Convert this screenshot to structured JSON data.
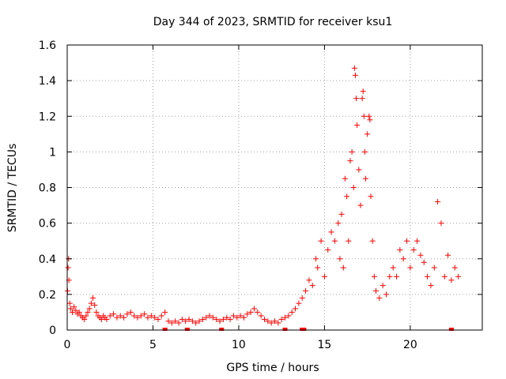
{
  "chart_data": {
    "type": "scatter",
    "title": "Day 344 of 2023, SRMTID for receiver ksu1",
    "xlabel": "GPS time / hours",
    "ylabel": "SRMTID / TECUs",
    "xlim": [
      0,
      24.2
    ],
    "ylim": [
      0,
      1.6
    ],
    "x_ticks": [
      0,
      5,
      10,
      15,
      20
    ],
    "x_tick_labels": [
      "0",
      "5",
      "10",
      "15",
      "20"
    ],
    "y_ticks": [
      0,
      0.2,
      0.4,
      0.6,
      0.8,
      1.0,
      1.2,
      1.4,
      1.6
    ],
    "y_tick_labels": [
      "0",
      "0.2",
      "0.4",
      "0.6",
      "0.8",
      "1",
      "1.2",
      "1.4",
      "1.6"
    ],
    "grid": true,
    "marker": "+",
    "series": [
      {
        "name": "SRMTID",
        "color": "#ff0000",
        "points": [
          [
            0.02,
            0.22
          ],
          [
            0.05,
            0.35
          ],
          [
            0.08,
            0.4
          ],
          [
            0.1,
            0.28
          ],
          [
            0.15,
            0.15
          ],
          [
            0.2,
            0.12
          ],
          [
            0.3,
            0.1
          ],
          [
            0.4,
            0.13
          ],
          [
            0.5,
            0.11
          ],
          [
            0.6,
            0.09
          ],
          [
            0.7,
            0.1
          ],
          [
            0.8,
            0.08
          ],
          [
            0.9,
            0.07
          ],
          [
            1.0,
            0.06
          ],
          [
            1.1,
            0.08
          ],
          [
            1.2,
            0.1
          ],
          [
            1.3,
            0.12
          ],
          [
            1.4,
            0.15
          ],
          [
            1.5,
            0.18
          ],
          [
            1.6,
            0.14
          ],
          [
            1.7,
            0.1
          ],
          [
            1.8,
            0.08
          ],
          [
            1.9,
            0.07
          ],
          [
            2.0,
            0.06
          ],
          [
            2.1,
            0.08
          ],
          [
            2.2,
            0.07
          ],
          [
            2.3,
            0.06
          ],
          [
            2.5,
            0.08
          ],
          [
            2.7,
            0.09
          ],
          [
            2.9,
            0.07
          ],
          [
            3.1,
            0.08
          ],
          [
            3.3,
            0.07
          ],
          [
            3.5,
            0.09
          ],
          [
            3.7,
            0.1
          ],
          [
            3.9,
            0.08
          ],
          [
            4.1,
            0.07
          ],
          [
            4.3,
            0.08
          ],
          [
            4.5,
            0.09
          ],
          [
            4.7,
            0.07
          ],
          [
            4.9,
            0.08
          ],
          [
            5.1,
            0.07
          ],
          [
            5.3,
            0.06
          ],
          [
            5.5,
            0.08
          ],
          [
            5.7,
            0.1
          ],
          [
            5.9,
            0.05
          ],
          [
            6.1,
            0.04
          ],
          [
            6.3,
            0.05
          ],
          [
            6.5,
            0.04
          ],
          [
            6.7,
            0.06
          ],
          [
            6.9,
            0.05
          ],
          [
            7.1,
            0.06
          ],
          [
            7.3,
            0.05
          ],
          [
            7.5,
            0.04
          ],
          [
            7.7,
            0.05
          ],
          [
            7.9,
            0.06
          ],
          [
            8.1,
            0.07
          ],
          [
            8.3,
            0.08
          ],
          [
            8.5,
            0.07
          ],
          [
            8.7,
            0.06
          ],
          [
            8.9,
            0.05
          ],
          [
            9.1,
            0.06
          ],
          [
            9.3,
            0.07
          ],
          [
            9.5,
            0.06
          ],
          [
            9.7,
            0.08
          ],
          [
            9.9,
            0.07
          ],
          [
            10.1,
            0.08
          ],
          [
            10.3,
            0.07
          ],
          [
            10.5,
            0.09
          ],
          [
            10.7,
            0.1
          ],
          [
            10.9,
            0.12
          ],
          [
            11.1,
            0.1
          ],
          [
            11.3,
            0.08
          ],
          [
            11.5,
            0.06
          ],
          [
            11.7,
            0.05
          ],
          [
            11.9,
            0.04
          ],
          [
            12.1,
            0.05
          ],
          [
            12.3,
            0.04
          ],
          [
            12.5,
            0.06
          ],
          [
            12.7,
            0.07
          ],
          [
            12.9,
            0.08
          ],
          [
            13.1,
            0.1
          ],
          [
            13.3,
            0.12
          ],
          [
            13.5,
            0.15
          ],
          [
            13.7,
            0.18
          ],
          [
            13.9,
            0.22
          ],
          [
            14.1,
            0.28
          ],
          [
            14.3,
            0.25
          ],
          [
            14.5,
            0.4
          ],
          [
            14.6,
            0.35
          ],
          [
            14.8,
            0.5
          ],
          [
            15.0,
            0.3
          ],
          [
            15.2,
            0.45
          ],
          [
            15.4,
            0.55
          ],
          [
            15.6,
            0.5
          ],
          [
            15.8,
            0.6
          ],
          [
            15.9,
            0.4
          ],
          [
            16.0,
            0.65
          ],
          [
            16.1,
            0.35
          ],
          [
            16.2,
            0.85
          ],
          [
            16.3,
            0.75
          ],
          [
            16.4,
            0.5
          ],
          [
            16.5,
            0.95
          ],
          [
            16.6,
            1.0
          ],
          [
            16.7,
            0.8
          ],
          [
            16.75,
            1.47
          ],
          [
            16.8,
            1.43
          ],
          [
            16.85,
            1.3
          ],
          [
            16.9,
            1.15
          ],
          [
            17.0,
            0.9
          ],
          [
            17.1,
            0.7
          ],
          [
            17.2,
            1.3
          ],
          [
            17.25,
            1.34
          ],
          [
            17.3,
            1.2
          ],
          [
            17.35,
            1.0
          ],
          [
            17.4,
            0.85
          ],
          [
            17.5,
            1.1
          ],
          [
            17.6,
            1.2
          ],
          [
            17.65,
            1.18
          ],
          [
            17.7,
            0.75
          ],
          [
            17.8,
            0.5
          ],
          [
            17.9,
            0.3
          ],
          [
            18.0,
            0.22
          ],
          [
            18.2,
            0.18
          ],
          [
            18.4,
            0.25
          ],
          [
            18.6,
            0.2
          ],
          [
            18.8,
            0.3
          ],
          [
            19.0,
            0.35
          ],
          [
            19.2,
            0.3
          ],
          [
            19.4,
            0.45
          ],
          [
            19.6,
            0.4
          ],
          [
            19.8,
            0.5
          ],
          [
            20.0,
            0.35
          ],
          [
            20.2,
            0.45
          ],
          [
            20.4,
            0.5
          ],
          [
            20.6,
            0.42
          ],
          [
            20.8,
            0.38
          ],
          [
            21.0,
            0.3
          ],
          [
            21.2,
            0.25
          ],
          [
            21.4,
            0.35
          ],
          [
            21.6,
            0.72
          ],
          [
            21.8,
            0.6
          ],
          [
            22.0,
            0.3
          ],
          [
            22.2,
            0.42
          ],
          [
            22.4,
            0.28
          ],
          [
            22.6,
            0.35
          ],
          [
            22.8,
            0.3
          ]
        ]
      }
    ],
    "baseline_markers_x": [
      5.7,
      7.0,
      9.0,
      12.7,
      13.7,
      13.8,
      22.4
    ]
  }
}
